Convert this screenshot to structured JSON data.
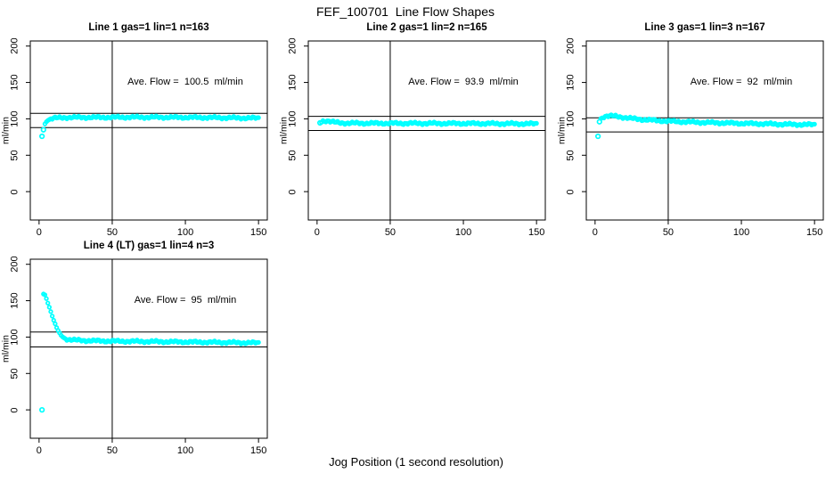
{
  "title": "FEF_100701  Line Flow Shapes",
  "xlabel": "Jog Position (1 second resolution)",
  "y_unit": "ml/min",
  "accent_color": "#00FFFF",
  "line_color": "#000000",
  "chart_data": {
    "type": "scatter",
    "title": "FEF_100701  Line Flow Shapes",
    "xlabel": "Jog Position (1 second resolution)",
    "ylabel": "ml/min",
    "x_ticks": [
      0,
      50,
      100,
      150
    ],
    "y_ticks": [
      0,
      50,
      100,
      150,
      200
    ],
    "xlim": [
      -6,
      156
    ],
    "ylim": [
      -39,
      207
    ],
    "grid": false,
    "vline_x": 50,
    "panels": [
      {
        "title": "Line 1 gas=1 lin=1 n=163",
        "ave_flow_label": "Ave. Flow =  100.5  ml/min",
        "ave_flow": 100.5,
        "n": 163,
        "hlines": [
          107.5,
          88
        ],
        "outliers": [
          [
            2,
            76
          ],
          [
            3,
            85
          ]
        ],
        "curve": [
          [
            4,
            93
          ],
          [
            5,
            96
          ],
          [
            6,
            98
          ],
          [
            8,
            100
          ],
          [
            10,
            101
          ],
          [
            15,
            101.5
          ],
          [
            20,
            102
          ],
          [
            40,
            102
          ],
          [
            60,
            102.3
          ],
          [
            80,
            102.2
          ],
          [
            100,
            102
          ],
          [
            120,
            101.7
          ],
          [
            135,
            101.3
          ],
          [
            150,
            101
          ]
        ]
      },
      {
        "title": "Line 2 gas=1 lin=2 n=165",
        "ave_flow_label": "Ave. Flow =  93.9  ml/min",
        "ave_flow": 93.9,
        "n": 165,
        "hlines": [
          103.5,
          84
        ],
        "outliers": [
          [
            2,
            94.5
          ]
        ],
        "curve": [
          [
            3,
            96
          ],
          [
            4,
            97
          ],
          [
            6,
            97.5
          ],
          [
            8,
            97
          ],
          [
            10,
            96
          ],
          [
            12,
            95.3
          ],
          [
            15,
            94.6
          ],
          [
            20,
            94.2
          ],
          [
            30,
            94
          ],
          [
            50,
            93.9
          ],
          [
            80,
            93.8
          ],
          [
            110,
            93.6
          ],
          [
            130,
            93.4
          ],
          [
            150,
            93.2
          ]
        ]
      },
      {
        "title": "Line 3 gas=1 lin=3 n=167",
        "ave_flow_label": "Ave. Flow =  92  ml/min",
        "ave_flow": 92,
        "n": 167,
        "hlines": [
          101.5,
          82
        ],
        "outliers": [
          [
            2,
            76
          ],
          [
            3,
            96
          ]
        ],
        "curve": [
          [
            4,
            100
          ],
          [
            6,
            103
          ],
          [
            8,
            104
          ],
          [
            12,
            104
          ],
          [
            16,
            103
          ],
          [
            20,
            102
          ],
          [
            25,
            100.5
          ],
          [
            30,
            99.5
          ],
          [
            40,
            98
          ],
          [
            50,
            96.8
          ],
          [
            60,
            96
          ],
          [
            70,
            95.3
          ],
          [
            80,
            94.8
          ],
          [
            90,
            94.3
          ],
          [
            100,
            93.8
          ],
          [
            110,
            93.4
          ],
          [
            120,
            93
          ],
          [
            130,
            92.5
          ],
          [
            140,
            92.2
          ],
          [
            150,
            92
          ]
        ]
      },
      {
        "title": "Line 4 (LT) gas=1 lin=4 n=3",
        "ave_flow_label": "Ave. Flow =  95  ml/min",
        "ave_flow": 95,
        "n": 3,
        "hlines": [
          107,
          86.5
        ],
        "outliers": [
          [
            2,
            0
          ]
        ],
        "curve": [
          [
            3,
            160
          ],
          [
            4,
            158
          ],
          [
            5,
            153
          ],
          [
            6,
            147
          ],
          [
            7,
            141
          ],
          [
            8,
            135
          ],
          [
            9,
            129
          ],
          [
            10,
            123
          ],
          [
            11,
            118
          ],
          [
            12,
            113
          ],
          [
            13,
            109
          ],
          [
            14,
            105.5
          ],
          [
            15,
            102.5
          ],
          [
            16,
            100.5
          ],
          [
            17,
            99
          ],
          [
            18,
            98
          ],
          [
            20,
            96.8
          ],
          [
            25,
            95.8
          ],
          [
            30,
            95.3
          ],
          [
            40,
            94.8
          ],
          [
            60,
            94.2
          ],
          [
            80,
            93.8
          ],
          [
            100,
            93.3
          ],
          [
            120,
            92.8
          ],
          [
            135,
            92.4
          ],
          [
            150,
            92
          ]
        ]
      }
    ]
  }
}
